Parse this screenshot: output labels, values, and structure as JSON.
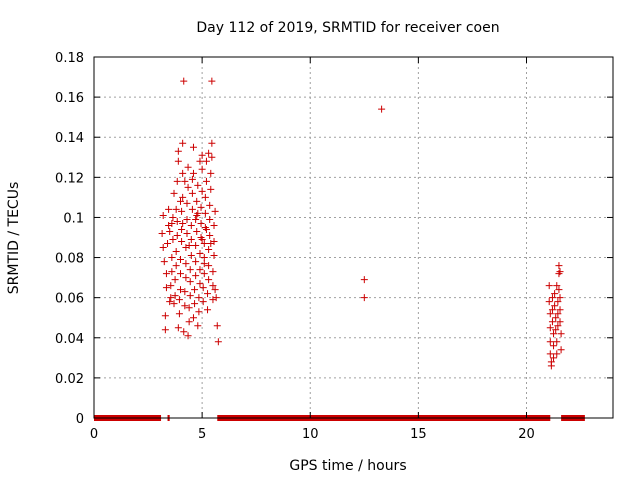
{
  "chart_data": {
    "type": "scatter",
    "title": "Day 112 of 2019, SRMTID for receiver coen",
    "xlabel": "GPS time / hours",
    "ylabel": "SRMTID / TECUs",
    "xlim": [
      0,
      24
    ],
    "ylim": [
      0,
      0.18
    ],
    "grid": true,
    "x_ticks": [
      0,
      5,
      10,
      15,
      20
    ],
    "x_tick_labels": [
      "0",
      "5",
      "10",
      "15",
      "20"
    ],
    "y_ticks": [
      0,
      0.02,
      0.04,
      0.06,
      0.08,
      0.1,
      0.12,
      0.14,
      0.16,
      0.18
    ],
    "y_tick_labels": [
      "0",
      "0.02",
      "0.04",
      "0.06",
      "0.08",
      "0.1",
      "0.12",
      "0.14",
      "0.16",
      "0.18"
    ],
    "marker": "+",
    "color": "#cc0000",
    "zero_baseline_segments": [
      [
        0.0,
        3.1
      ],
      [
        3.4,
        3.5
      ],
      [
        5.7,
        21.1
      ],
      [
        21.6,
        22.7
      ]
    ],
    "series": [
      {
        "name": "SRMTID",
        "points": [
          [
            3.15,
            0.092
          ],
          [
            3.2,
            0.085
          ],
          [
            3.25,
            0.078
          ],
          [
            3.3,
            0.044
          ],
          [
            3.3,
            0.051
          ],
          [
            3.35,
            0.065
          ],
          [
            3.35,
            0.072
          ],
          [
            3.4,
            0.087
          ],
          [
            3.45,
            0.096
          ],
          [
            3.45,
            0.104
          ],
          [
            3.5,
            0.058
          ],
          [
            3.55,
            0.06
          ],
          [
            3.55,
            0.066
          ],
          [
            3.6,
            0.073
          ],
          [
            3.6,
            0.08
          ],
          [
            3.65,
            0.089
          ],
          [
            3.65,
            0.1
          ],
          [
            3.7,
            0.112
          ],
          [
            3.7,
            0.057
          ],
          [
            3.75,
            0.061
          ],
          [
            3.75,
            0.069
          ],
          [
            3.8,
            0.076
          ],
          [
            3.8,
            0.083
          ],
          [
            3.85,
            0.091
          ],
          [
            3.85,
            0.098
          ],
          [
            3.85,
            0.118
          ],
          [
            3.9,
            0.128
          ],
          [
            3.9,
            0.045
          ],
          [
            3.95,
            0.052
          ],
          [
            3.95,
            0.059
          ],
          [
            4.0,
            0.064
          ],
          [
            4.0,
            0.072
          ],
          [
            4.0,
            0.079
          ],
          [
            4.05,
            0.088
          ],
          [
            4.05,
            0.094
          ],
          [
            4.05,
            0.103
          ],
          [
            4.1,
            0.11
          ],
          [
            4.1,
            0.122
          ],
          [
            4.1,
            0.137
          ],
          [
            4.15,
            0.168
          ],
          [
            4.15,
            0.043
          ],
          [
            4.2,
            0.056
          ],
          [
            4.2,
            0.063
          ],
          [
            4.25,
            0.07
          ],
          [
            4.25,
            0.077
          ],
          [
            4.25,
            0.085
          ],
          [
            4.3,
            0.092
          ],
          [
            4.3,
            0.099
          ],
          [
            4.3,
            0.107
          ],
          [
            4.35,
            0.115
          ],
          [
            4.35,
            0.125
          ],
          [
            4.35,
            0.041
          ],
          [
            4.4,
            0.048
          ],
          [
            4.4,
            0.055
          ],
          [
            4.45,
            0.061
          ],
          [
            4.45,
            0.068
          ],
          [
            4.45,
            0.074
          ],
          [
            4.5,
            0.081
          ],
          [
            4.5,
            0.089
          ],
          [
            4.5,
            0.096
          ],
          [
            4.55,
            0.104
          ],
          [
            4.55,
            0.112
          ],
          [
            4.55,
            0.119
          ],
          [
            4.6,
            0.135
          ],
          [
            4.6,
            0.05
          ],
          [
            4.65,
            0.057
          ],
          [
            4.65,
            0.064
          ],
          [
            4.7,
            0.071
          ],
          [
            4.7,
            0.078
          ],
          [
            4.7,
            0.086
          ],
          [
            4.75,
            0.093
          ],
          [
            4.75,
            0.101
          ],
          [
            4.75,
            0.108
          ],
          [
            4.8,
            0.116
          ],
          [
            4.8,
            0.046
          ],
          [
            4.85,
            0.053
          ],
          [
            4.85,
            0.06
          ],
          [
            4.9,
            0.067
          ],
          [
            4.9,
            0.074
          ],
          [
            4.9,
            0.082
          ],
          [
            4.95,
            0.09
          ],
          [
            4.95,
            0.097
          ],
          [
            4.95,
            0.105
          ],
          [
            5.0,
            0.113
          ],
          [
            5.0,
            0.124
          ],
          [
            5.0,
            0.131
          ],
          [
            5.05,
            0.058
          ],
          [
            5.05,
            0.065
          ],
          [
            5.1,
            0.072
          ],
          [
            5.1,
            0.08
          ],
          [
            5.1,
            0.087
          ],
          [
            5.15,
            0.095
          ],
          [
            5.15,
            0.102
          ],
          [
            5.15,
            0.11
          ],
          [
            5.2,
            0.118
          ],
          [
            5.2,
            0.128
          ],
          [
            5.25,
            0.054
          ],
          [
            5.25,
            0.062
          ],
          [
            5.3,
            0.069
          ],
          [
            5.3,
            0.076
          ],
          [
            5.3,
            0.084
          ],
          [
            5.35,
            0.091
          ],
          [
            5.35,
            0.099
          ],
          [
            5.35,
            0.106
          ],
          [
            5.4,
            0.114
          ],
          [
            5.4,
            0.122
          ],
          [
            5.45,
            0.13
          ],
          [
            5.45,
            0.137
          ],
          [
            5.45,
            0.168
          ],
          [
            5.5,
            0.059
          ],
          [
            5.5,
            0.066
          ],
          [
            5.5,
            0.073
          ],
          [
            5.55,
            0.081
          ],
          [
            5.55,
            0.088
          ],
          [
            5.55,
            0.096
          ],
          [
            5.6,
            0.103
          ],
          [
            5.6,
            0.064
          ],
          [
            5.65,
            0.06
          ],
          [
            5.7,
            0.046
          ],
          [
            5.75,
            0.038
          ],
          [
            3.2,
            0.101
          ],
          [
            3.5,
            0.093
          ],
          [
            3.8,
            0.104
          ],
          [
            4.1,
            0.097
          ],
          [
            4.4,
            0.086
          ],
          [
            4.7,
            0.099
          ],
          [
            5.0,
            0.089
          ],
          [
            5.2,
            0.094
          ],
          [
            5.4,
            0.087
          ],
          [
            4.2,
            0.118
          ],
          [
            4.6,
            0.122
          ],
          [
            4.9,
            0.128
          ],
          [
            5.3,
            0.132
          ],
          [
            3.9,
            0.133
          ],
          [
            3.6,
            0.097
          ],
          [
            4.0,
            0.108
          ],
          [
            4.8,
            0.102
          ],
          [
            5.1,
            0.077
          ],
          [
            12.5,
            0.069
          ],
          [
            12.5,
            0.06
          ],
          [
            13.3,
            0.154
          ],
          [
            21.05,
            0.066
          ],
          [
            21.05,
            0.058
          ],
          [
            21.1,
            0.052
          ],
          [
            21.1,
            0.045
          ],
          [
            21.1,
            0.038
          ],
          [
            21.1,
            0.032
          ],
          [
            21.15,
            0.028
          ],
          [
            21.15,
            0.026
          ],
          [
            21.2,
            0.06
          ],
          [
            21.2,
            0.054
          ],
          [
            21.2,
            0.048
          ],
          [
            21.25,
            0.042
          ],
          [
            21.25,
            0.036
          ],
          [
            21.25,
            0.03
          ],
          [
            21.3,
            0.062
          ],
          [
            21.3,
            0.056
          ],
          [
            21.35,
            0.05
          ],
          [
            21.35,
            0.044
          ],
          [
            21.4,
            0.038
          ],
          [
            21.4,
            0.032
          ],
          [
            21.4,
            0.066
          ],
          [
            21.45,
            0.058
          ],
          [
            21.45,
            0.052
          ],
          [
            21.45,
            0.046
          ],
          [
            21.5,
            0.076
          ],
          [
            21.5,
            0.072
          ],
          [
            21.5,
            0.064
          ],
          [
            21.55,
            0.06
          ],
          [
            21.55,
            0.054
          ],
          [
            21.55,
            0.048
          ],
          [
            21.6,
            0.042
          ],
          [
            21.6,
            0.034
          ],
          [
            21.55,
            0.073
          ]
        ]
      }
    ]
  }
}
